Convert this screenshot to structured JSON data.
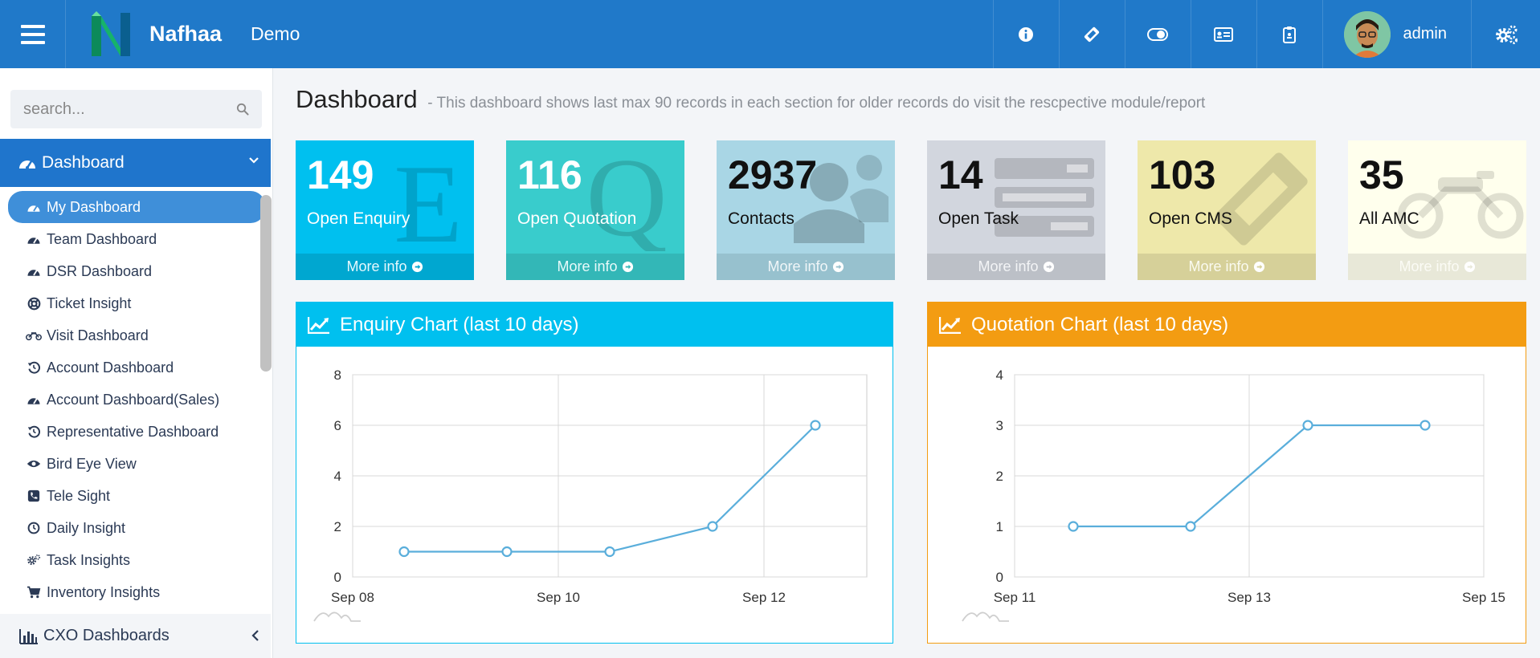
{
  "header": {
    "brand": "Nafhaa",
    "tag": "Demo",
    "user": "admin"
  },
  "sidebar": {
    "search_placeholder": "search...",
    "section": "Dashboard",
    "items": [
      {
        "label": "My Dashboard",
        "icon": "dashboard-icon"
      },
      {
        "label": "Team Dashboard",
        "icon": "dashboard-icon"
      },
      {
        "label": "DSR Dashboard",
        "icon": "dashboard-icon"
      },
      {
        "label": "Ticket Insight",
        "icon": "life-ring-icon"
      },
      {
        "label": "Visit Dashboard",
        "icon": "motorcycle-icon"
      },
      {
        "label": "Account Dashboard",
        "icon": "history-icon"
      },
      {
        "label": "Account Dashboard(Sales)",
        "icon": "dashboard-icon"
      },
      {
        "label": "Representative Dashboard",
        "icon": "history-icon"
      },
      {
        "label": "Bird Eye View",
        "icon": "eye-icon"
      },
      {
        "label": "Tele Sight",
        "icon": "phone-icon"
      },
      {
        "label": "Daily Insight",
        "icon": "clock-icon"
      },
      {
        "label": "Task Insights",
        "icon": "cogs-icon"
      },
      {
        "label": "Inventory Insights",
        "icon": "cart-icon"
      }
    ],
    "cxo": "CXO Dashboards"
  },
  "page": {
    "title": "Dashboard",
    "subtitle": "- This dashboard shows last max 90 records in each section for older records do visit the rescpective module/report"
  },
  "tiles": [
    {
      "count": "149",
      "label": "Open Enquiry",
      "more": "More info"
    },
    {
      "count": "116",
      "label": "Open Quotation",
      "more": "More info"
    },
    {
      "count": "2937",
      "label": "Contacts",
      "more": "More info"
    },
    {
      "count": "14",
      "label": "Open Task",
      "more": "More info"
    },
    {
      "count": "103",
      "label": "Open CMS",
      "more": "More info"
    },
    {
      "count": "35",
      "label": "All AMC",
      "more": "More info"
    }
  ],
  "colors": {
    "topbar": "#2079c9",
    "line": "#5aaedb",
    "enquiry_header": "#00c0ef",
    "quotation_header": "#f39c12"
  },
  "chart_data": [
    {
      "type": "line",
      "title": "Enquiry Chart (last 10 days)",
      "x_ticks": [
        "Sep 08",
        "Sep 10",
        "Sep 12"
      ],
      "x": [
        "2023-09-08T12:00",
        "2023-09-09T12:00",
        "2023-09-10T12:00",
        "2023-09-11T12:00",
        "2023-09-12T12:00"
      ],
      "y": [
        1,
        1,
        1,
        2,
        6
      ],
      "x_range": [
        "2023-09-08",
        "2023-09-13"
      ],
      "ylim": [
        0,
        8
      ],
      "y_ticks": [
        0,
        2,
        4,
        6,
        8
      ],
      "grid": true
    },
    {
      "type": "line",
      "title": "Quotation Chart (last 10 days)",
      "x_ticks": [
        "Sep 11",
        "Sep 13",
        "Sep 15"
      ],
      "x": [
        "2023-09-11T12:00",
        "2023-09-12T12:00",
        "2023-09-13T12:00",
        "2023-09-14T12:00"
      ],
      "y": [
        1,
        1,
        3,
        3
      ],
      "x_range": [
        "2023-09-11",
        "2023-09-15"
      ],
      "ylim": [
        0,
        4
      ],
      "y_ticks": [
        0,
        1,
        2,
        3,
        4
      ],
      "grid": true
    }
  ]
}
